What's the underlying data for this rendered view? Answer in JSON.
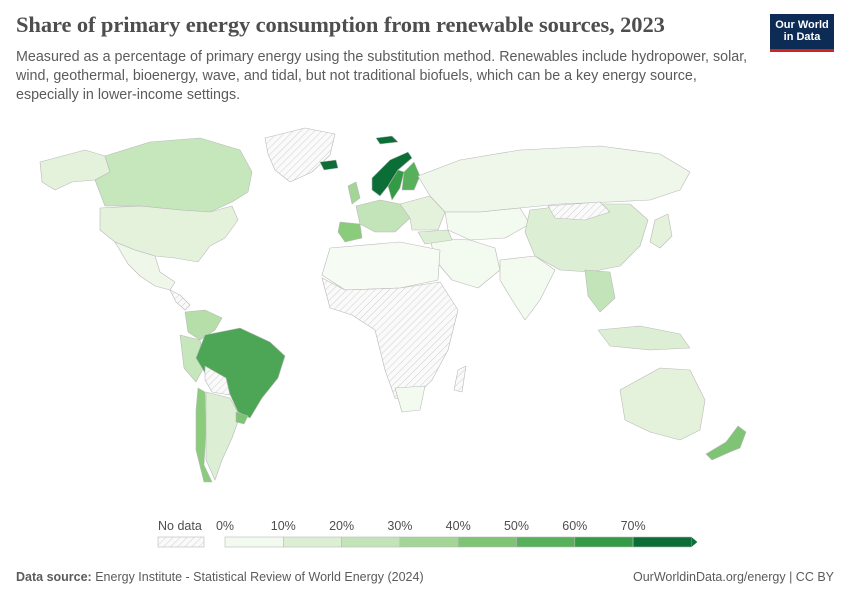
{
  "header": {
    "title": "Share of primary energy consumption from renewable sources, 2023",
    "subtitle": "Measured as a percentage of primary energy using the substitution method. Renewables include hydropower, solar, wind, geothermal, bioenergy, wave, and tidal, but not traditional biofuels, which can be a key energy source, especially in lower-income settings."
  },
  "logo": {
    "line1": "Our World",
    "line2": "in Data",
    "bg": "#0c2c55",
    "accent": "#ce261e"
  },
  "legend": {
    "no_data_label": "No data",
    "ticks": [
      "0%",
      "10%",
      "20%",
      "30%",
      "40%",
      "50%",
      "60%",
      "70%"
    ],
    "colors": [
      "#f3faef",
      "#dcefd4",
      "#c3e4b9",
      "#a3d596",
      "#7fc474",
      "#57b05a",
      "#339a46",
      "#0b6e36"
    ]
  },
  "footer": {
    "source_label": "Data source:",
    "source_text": "Energy Institute - Statistical Review of World Energy (2024)",
    "credit": "OurWorldinData.org/energy | CC BY"
  }
}
